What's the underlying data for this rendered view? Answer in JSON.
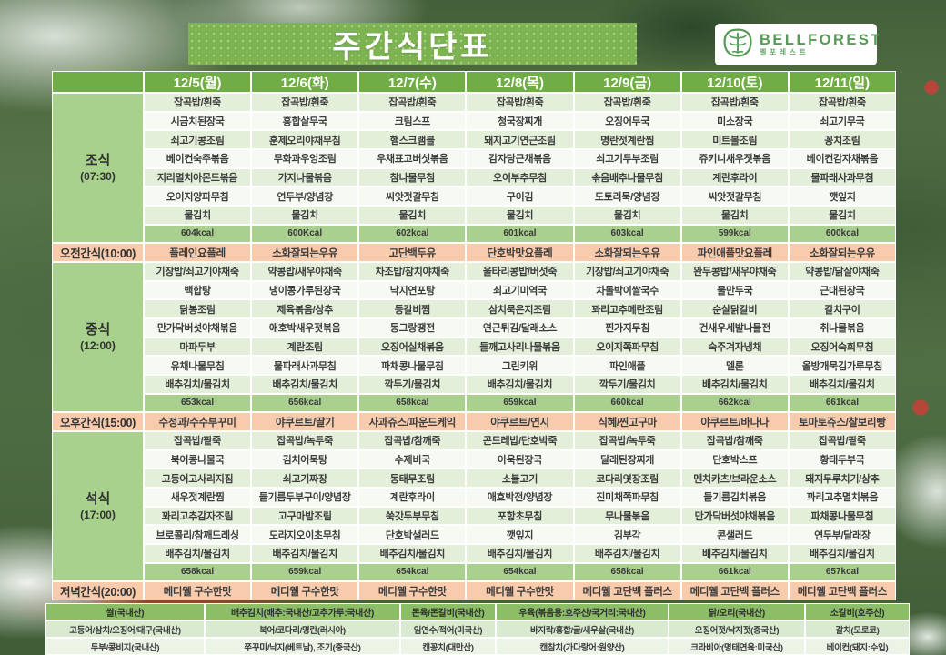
{
  "title": "주간식단표",
  "logo": {
    "name": "BELLFOREST",
    "subname": "벨포레스트"
  },
  "colors": {
    "header_green": "#70ad47",
    "label_green": "#a9d18e",
    "kcal_green": "#a9d08e",
    "snack_peach": "#f8cbad",
    "banner_green": "#7db351",
    "brand_green": "#569a56"
  },
  "days": [
    "12/5(월)",
    "12/6(화)",
    "12/7(수)",
    "12/8(목)",
    "12/9(금)",
    "12/10(토)",
    "12/11(일)"
  ],
  "meal_table": {
    "sections": [
      {
        "type": "meal",
        "label": "조식",
        "time": "(07:30)",
        "menus": [
          [
            "잡곡밥/흰죽",
            "시금치된장국",
            "쇠고기콩조림",
            "베이컨숙주볶음",
            "지리멸치아몬드볶음",
            "오이지양파무침",
            "물김치"
          ],
          [
            "잡곡밥/흰죽",
            "홍합살무국",
            "훈제오리야채무침",
            "무화과우엉조림",
            "가지나물볶음",
            "연두부/양념장",
            "물김치"
          ],
          [
            "잡곡밥/흰죽",
            "크림스프",
            "햄스크램블",
            "우채표고버섯볶음",
            "참나물무침",
            "씨앗젓갈무침",
            "물김치"
          ],
          [
            "잡곡밥/흰죽",
            "청국장찌개",
            "돼지고기연근조림",
            "감자당근채볶음",
            "오이부추무침",
            "구이김",
            "물김치"
          ],
          [
            "잡곡밥/흰죽",
            "오징어무국",
            "명란젓계란찜",
            "쇠고기두부조림",
            "솎음배추나물무침",
            "도토리묵/양념장",
            "물김치"
          ],
          [
            "잡곡밥/흰죽",
            "미소장국",
            "미트볼조림",
            "쥬키니새우젓볶음",
            "계란후라이",
            "씨앗젓갈무침",
            "물김치"
          ],
          [
            "잡곡밥/흰죽",
            "쇠고기무국",
            "꽁치조림",
            "베이컨감자채볶음",
            "물파래사과무침",
            "깻잎지",
            "물김치"
          ]
        ],
        "kcal": [
          "604kcal",
          "600Kcal",
          "602kcal",
          "601kcal",
          "603kcal",
          "599kcal",
          "600kcal"
        ]
      },
      {
        "type": "snack",
        "label": "오전간식(10:00)",
        "items": [
          "플레인요플레",
          "소화잘되는우유",
          "고단백두유",
          "단호박맛요플레",
          "소화잘되는우유",
          "파인애플맛요플레",
          "소화잘되는우유"
        ]
      },
      {
        "type": "meal",
        "label": "중식",
        "time": "(12:00)",
        "menus": [
          [
            "기장밥/쇠고기야채죽",
            "백합탕",
            "닭봉조림",
            "만가닥버섯야채볶음",
            "마파두부",
            "유채나물무침",
            "배추김치/물김치"
          ],
          [
            "약콩밥/새우야채죽",
            "냉이콩가루된장국",
            "제육볶음/상추",
            "애호박새우젓볶음",
            "계란조림",
            "물파래사과무침",
            "배추김치/물김치"
          ],
          [
            "차조밥/참치야채죽",
            "낙지연포탕",
            "등갈비찜",
            "동그랑땡전",
            "오징어실채볶음",
            "파채콩나물무침",
            "깍두기/물김치"
          ],
          [
            "울타리콩밥/버섯죽",
            "쇠고기미역국",
            "삼치묵은지조림",
            "연근튀김/달래소스",
            "들깨고사리나물볶음",
            "그린키위",
            "배추김치/물김치"
          ],
          [
            "기장밥/쇠고기야채죽",
            "차돌박이쌀국수",
            "꽈리고추메란조림",
            "찐가지무침",
            "오이지쪽파무침",
            "파인애플",
            "깍두기/물김치"
          ],
          [
            "완두콩밥/새우야채죽",
            "물만두국",
            "순살닭갈비",
            "건새우세발나물전",
            "숙주겨자냉채",
            "멜론",
            "배추김치/물김치"
          ],
          [
            "약콩밥/닭살야채죽",
            "근대된장국",
            "갈치구이",
            "취나물볶음",
            "오징어숙회무침",
            "올방개묵김가루무침",
            "배추김치/물김치"
          ]
        ],
        "kcal": [
          "653kcal",
          "656kcal",
          "658kcal",
          "659kcal",
          "660kcal",
          "662kcal",
          "661kcal"
        ]
      },
      {
        "type": "snack",
        "label": "오후간식(15:00)",
        "items": [
          "수정과/수수부꾸미",
          "야쿠르트/딸기",
          "사과쥬스/파운드케익",
          "야쿠르트/연시",
          "식혜/찐고구마",
          "야쿠르트/바나나",
          "토마토쥬스/찰보리빵"
        ]
      },
      {
        "type": "meal",
        "label": "석식",
        "time": "(17:00)",
        "menus": [
          [
            "잡곡밥/팥죽",
            "북어콩나물국",
            "고등어고사리지짐",
            "새우젓계란찜",
            "꽈리고추감자조림",
            "브로콜리/참깨드레싱",
            "배추김치/물김치"
          ],
          [
            "잡곡밥/녹두죽",
            "김치어묵탕",
            "쇠고기짜장",
            "들기름두부구이/양념장",
            "고구마밤조림",
            "도라지오이초무침",
            "배추김치/물김치"
          ],
          [
            "잡곡밥/참깨죽",
            "수제비국",
            "동태무조림",
            "계란후라이",
            "쑥갓두부무침",
            "단호박샐러드",
            "배추김치/물김치"
          ],
          [
            "곤드레밥/단호박죽",
            "아욱된장국",
            "소불고기",
            "애호박전/양념장",
            "포항초무침",
            "깻잎지",
            "배추김치/물김치"
          ],
          [
            "잡곡밥/녹두죽",
            "달래된장찌개",
            "코다리엿장조림",
            "진미채쪽파무침",
            "무나물볶음",
            "김부각",
            "배추김치/물김치"
          ],
          [
            "잡곡밥/참깨죽",
            "단호박스프",
            "멘치카츠/브라운소스",
            "들기름김치볶음",
            "만가닥버섯야채볶음",
            "콘샐러드",
            "배추김치/물김치"
          ],
          [
            "잡곡밥/팥죽",
            "황태두부국",
            "돼지두루치기/상추",
            "꽈리고추멸치볶음",
            "파채콩나물무침",
            "연두부/달래장",
            "배추김치/물김치"
          ]
        ],
        "kcal": [
          "658kcal",
          "659kcal",
          "654kcal",
          "654kcal",
          "658kcal",
          "661kcal",
          "657kcal"
        ]
      },
      {
        "type": "snack",
        "label": "저녁간식(20:00)",
        "items": [
          "메디웰 구수한맛",
          "메디웰 구수한맛",
          "메디웰 구수한맛",
          "메디웰 구수한맛",
          "메디웰 고단백 플러스",
          "메디웰 고단백 플러스",
          "메디웰 고단백 플러스"
        ]
      }
    ]
  },
  "origin_table": {
    "rows": [
      [
        "쌀(국내산)",
        "배추김치(배추:국내산/고추가루:국내산)",
        "돈육/돈갈비(국내산)",
        "우육(볶음용:호주산/국거리:국내산)",
        "닭/오리(국내산)",
        "소갈비(호주산)"
      ],
      [
        "고등어/삼치/오징어/대구(국내산)",
        "북어/코다리/명란(러시아)",
        "임연수/적어(미국산)",
        "바지락/홍합/굴/새우살(국내산)",
        "오징어젓/낙지젓(중국산)",
        "갈치(모로코)"
      ],
      [
        "두부/콩비지(국내산)",
        "쭈꾸미/낙지(베트남), 조기(중국산)",
        "캔꽁치(대만산)",
        "캔참치(가다랑어:원양산)",
        "크라비아(명태연육:미국산)",
        "베이컨(돼지:수입)"
      ]
    ]
  }
}
